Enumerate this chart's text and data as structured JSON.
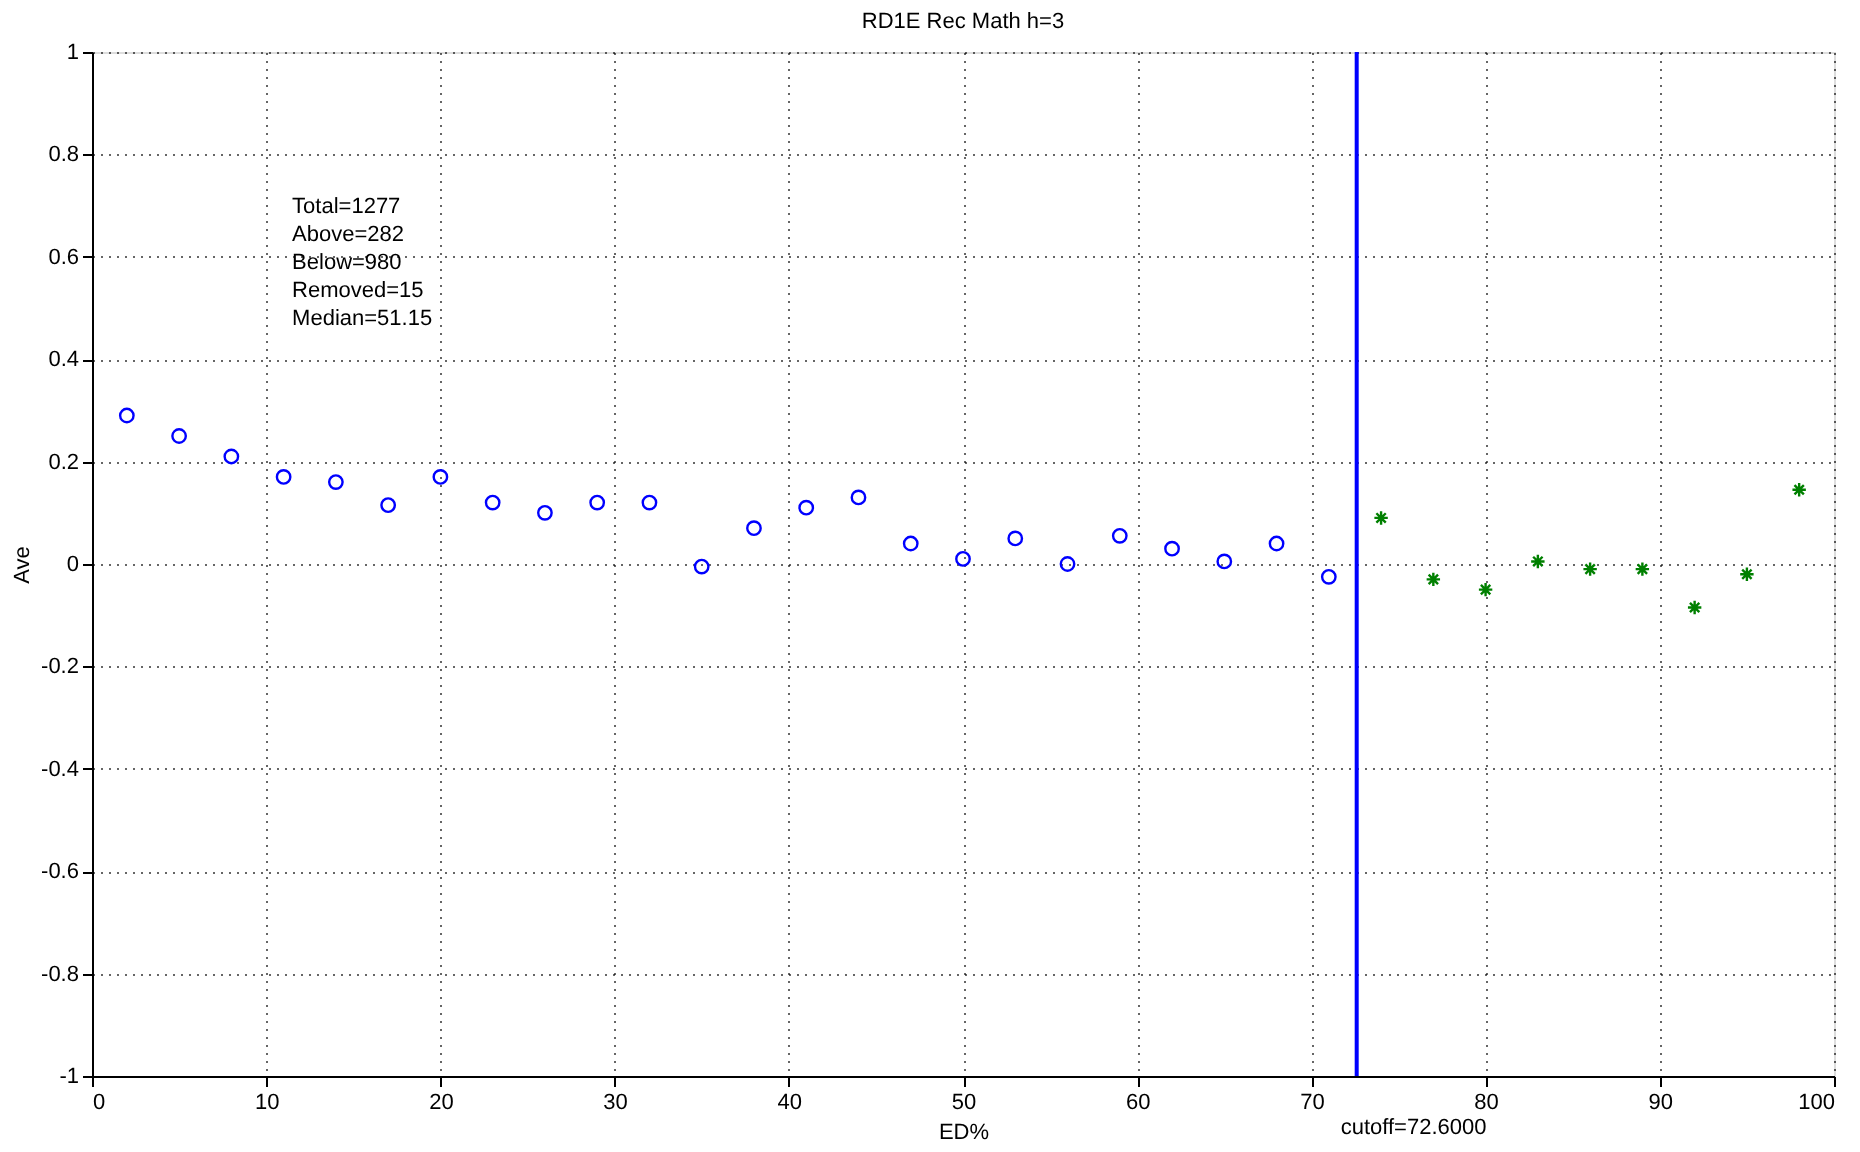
{
  "chart_data": {
    "type": "scatter",
    "title": "RD1E Rec Math h=3",
    "xlabel": "ED%",
    "ylabel": "Ave",
    "annotations": [
      "Total=1277",
      "Above=282",
      "Below=980",
      "Removed=15",
      "Median=51.15"
    ],
    "series": [
      {
        "color": "#0000ff",
        "marker": "circle",
        "x": [
          2,
          5,
          8,
          11,
          14,
          17,
          20,
          23,
          26,
          29,
          32,
          35,
          38,
          41,
          44,
          47,
          50,
          53,
          56,
          59,
          62,
          65,
          68,
          71
        ],
        "values": [
          0.29,
          0.25,
          0.21,
          0.17,
          0.16,
          0.115,
          0.17,
          0.12,
          0.1,
          0.12,
          0.12,
          -0.005,
          0.07,
          0.11,
          0.13,
          0.04,
          0.01,
          0.05,
          0.0,
          0.055,
          0.03,
          0.005,
          0.04,
          -0.025
        ]
      },
      {
        "color": "#008000",
        "marker": "cross",
        "x": [
          74,
          77,
          80,
          83,
          86,
          89,
          92,
          95,
          98
        ],
        "values": [
          0.09,
          -0.03,
          -0.05,
          0.005,
          -0.01,
          -0.01,
          -0.085,
          -0.02,
          0.145
        ]
      }
    ],
    "ref_lines": [
      {
        "axis": "x",
        "value": 72.6,
        "label": "cutoff=72.6000",
        "color": "#0000ff"
      }
    ],
    "xlim": [
      0,
      100
    ],
    "xticks": [
      0,
      10,
      20,
      30,
      40,
      50,
      60,
      70,
      80,
      90,
      100
    ],
    "ylim": [
      -1,
      1
    ],
    "yticks": [
      -1,
      -0.8,
      -0.6,
      -0.4,
      -0.2,
      0,
      0.2,
      0.4,
      0.6,
      0.8,
      1
    ],
    "grid": true
  }
}
